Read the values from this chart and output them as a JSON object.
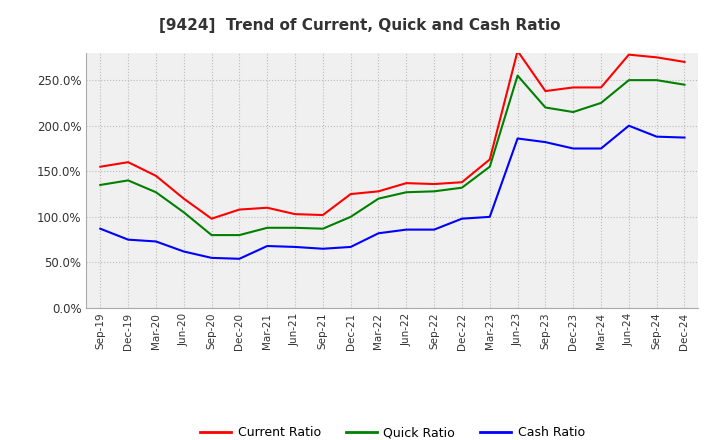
{
  "title": "[9424]  Trend of Current, Quick and Cash Ratio",
  "x_labels": [
    "Sep-19",
    "Dec-19",
    "Mar-20",
    "Jun-20",
    "Sep-20",
    "Dec-20",
    "Mar-21",
    "Jun-21",
    "Sep-21",
    "Dec-21",
    "Mar-22",
    "Jun-22",
    "Sep-22",
    "Dec-22",
    "Mar-23",
    "Jun-23",
    "Sep-23",
    "Dec-23",
    "Mar-24",
    "Jun-24",
    "Sep-24",
    "Dec-24"
  ],
  "current_ratio": [
    155,
    160,
    145,
    120,
    98,
    108,
    110,
    103,
    102,
    125,
    128,
    137,
    136,
    138,
    163,
    282,
    238,
    242,
    242,
    278,
    275,
    270
  ],
  "quick_ratio": [
    135,
    140,
    127,
    105,
    80,
    80,
    88,
    88,
    87,
    100,
    120,
    127,
    128,
    132,
    155,
    255,
    220,
    215,
    225,
    250,
    250,
    245
  ],
  "cash_ratio": [
    87,
    75,
    73,
    62,
    55,
    54,
    68,
    67,
    65,
    67,
    82,
    86,
    86,
    98,
    100,
    186,
    182,
    175,
    175,
    200,
    188,
    187
  ],
  "current_color": "#ff0000",
  "quick_color": "#008000",
  "cash_color": "#0000ff",
  "ylim": [
    0,
    280
  ],
  "yticks": [
    0,
    50,
    100,
    150,
    200,
    250
  ],
  "background_color": "#ffffff",
  "plot_bg_color": "#f0f0f0",
  "grid_color": "#bbbbbb",
  "title_color": "#333333",
  "legend_labels": [
    "Current Ratio",
    "Quick Ratio",
    "Cash Ratio"
  ]
}
